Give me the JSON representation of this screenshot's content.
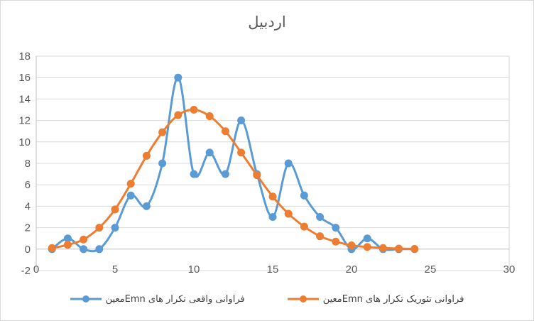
{
  "chart_data": {
    "type": "line",
    "title": "اردبیل",
    "xlabel": "",
    "ylabel": "",
    "xlim": [
      0,
      30
    ],
    "ylim": [
      -2,
      18
    ],
    "x_ticks": [
      "0",
      "5",
      "10",
      "15",
      "20",
      "25",
      "30"
    ],
    "y_ticks": [
      "-2",
      "0",
      "2",
      "4",
      "6",
      "8",
      "10",
      "12",
      "14",
      "16",
      "18"
    ],
    "grid": "horizontal",
    "legend_position": "bottom",
    "smooth": true,
    "series": [
      {
        "name": "فراوانی واقعی تکرار های Emnمعین",
        "color": "#5b9bd5",
        "x": [
          1,
          2,
          3,
          4,
          5,
          6,
          7,
          8,
          9,
          10,
          11,
          12,
          13,
          14,
          15,
          16,
          17,
          18,
          19,
          20,
          21,
          22,
          23,
          24
        ],
        "y": [
          0,
          1,
          0,
          0,
          2,
          5,
          4,
          8,
          16,
          7,
          9,
          7,
          12,
          7,
          3,
          8,
          5,
          3,
          2,
          0,
          1,
          0,
          0,
          0
        ]
      },
      {
        "name": "فراوانی تئوریک تکرار های Emnمعین",
        "color": "#ed7d31",
        "x": [
          1,
          2,
          3,
          4,
          5,
          6,
          7,
          8,
          9,
          10,
          11,
          12,
          13,
          14,
          15,
          16,
          17,
          18,
          19,
          20,
          21,
          22,
          23,
          24
        ],
        "y": [
          0.1,
          0.4,
          0.9,
          2.0,
          3.7,
          6.1,
          8.7,
          10.9,
          12.5,
          13.0,
          12.4,
          11.0,
          9.0,
          6.9,
          4.9,
          3.3,
          2.1,
          1.2,
          0.7,
          0.35,
          0.2,
          0.1,
          0.05,
          0.02
        ]
      }
    ]
  }
}
